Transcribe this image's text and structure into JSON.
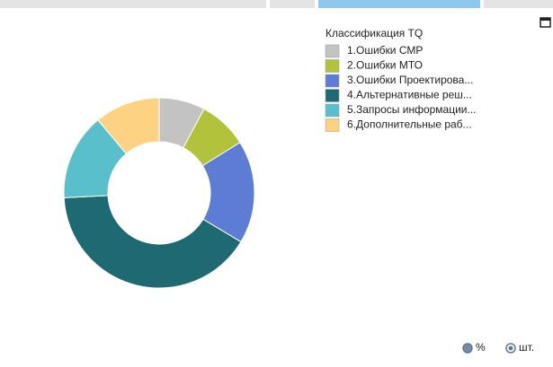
{
  "chart_data": {
    "type": "donut",
    "legend_title": "Классификация TQ",
    "categories": [
      "1.Ошибки СМР",
      "2.Ошибки МТО",
      "3.Ошибки Проектирова...",
      "4.Альтернативные реш...",
      "5.Запросы информации...",
      "6.Дополнительные раб..."
    ],
    "values": [
      7.8,
      8.3,
      17.5,
      40.6,
      14.7,
      11.1
    ],
    "colors": [
      "#c3c3c3",
      "#b2c23a",
      "#5d7cd4",
      "#1f6a72",
      "#58bfcb",
      "#fdd383"
    ],
    "legend": "top-right",
    "unit_options": [
      "%",
      "шт."
    ],
    "selected_option": 1
  }
}
